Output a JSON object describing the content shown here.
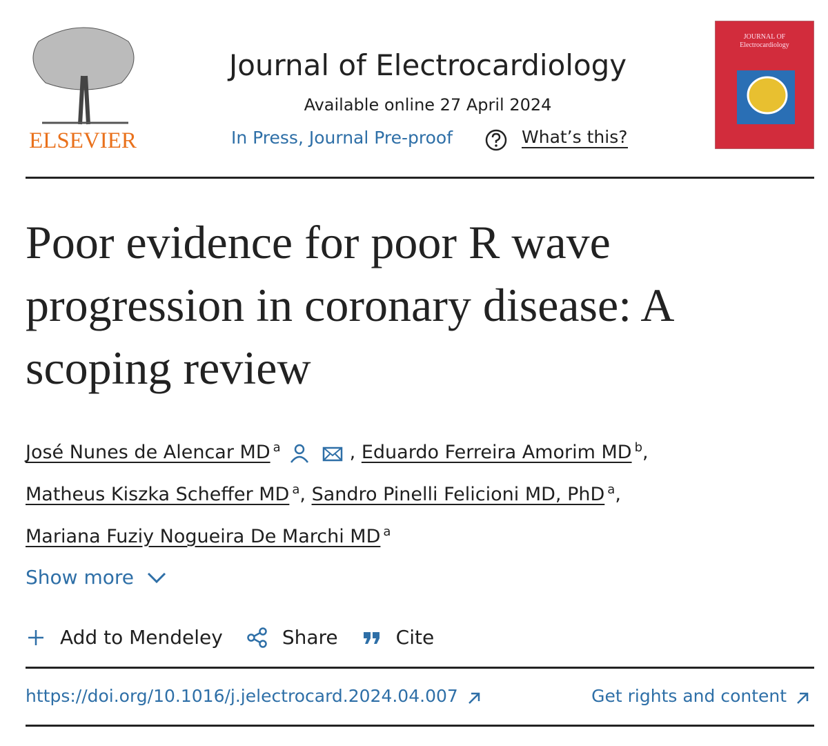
{
  "header": {
    "publisher": "ELSEVIER",
    "journal": "Journal of Electrocardiology",
    "available": "Available online 27 April 2024",
    "status": "In Press, Journal Pre-proof",
    "whats_this": "What’s this?",
    "cover": {
      "line1": "JOURNAL OF",
      "line2": "Electrocardiology"
    }
  },
  "article": {
    "title": "Poor evidence for poor R wave progression in coronary disease: A scoping review",
    "authors": [
      {
        "name": "José Nunes de Alencar MD",
        "affiliation": "a",
        "suffix": ","
      },
      {
        "name": "Eduardo Ferreira Amorim MD",
        "affiliation": "b",
        "suffix": ","
      },
      {
        "name": "Matheus Kiszka Scheffer MD",
        "affiliation": "a",
        "suffix": ","
      },
      {
        "name": "Sandro Pinelli Felicioni MD, PhD",
        "affiliation": "a",
        "suffix": ","
      },
      {
        "name": "Mariana Fuziy Nogueira De Marchi MD",
        "affiliation": "a"
      }
    ],
    "show_more": "Show more"
  },
  "actions": [
    "Add to Mendeley",
    "Share",
    "Cite"
  ],
  "doi": "https://doi.org/10.1016/j.jelectrocard.2024.04.007",
  "rights": "Get rights and content"
}
